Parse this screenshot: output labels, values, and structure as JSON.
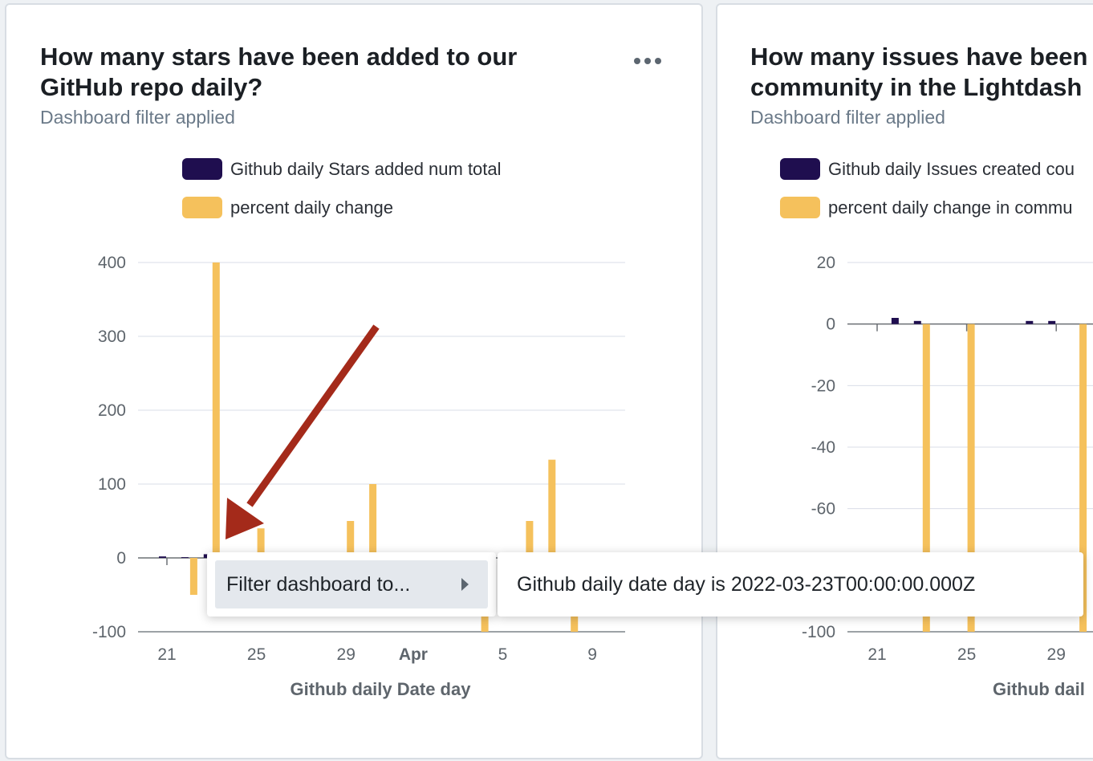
{
  "charts": [
    {
      "title": "How many stars have been added to our\nGitHub repo daily?",
      "subtitle": "Dashboard filter applied",
      "more_icon": "ellipsis-icon",
      "legend": [
        {
          "label": "Github daily Stars added num total",
          "color": "#1f0e4f"
        },
        {
          "label": "percent daily change",
          "color": "#f5c15c"
        }
      ]
    },
    {
      "title": "How many issues have been\ncommunity in the Lightdash",
      "subtitle": "Dashboard filter applied",
      "legend": [
        {
          "label": "Github daily Issues created cou",
          "color": "#1f0e4f"
        },
        {
          "label": "percent daily change in commu",
          "color": "#f5c15c"
        }
      ]
    }
  ],
  "chart_data": [
    {
      "type": "bar",
      "title": "How many stars have been added to our GitHub repo daily?",
      "xlabel": "Github daily Date day",
      "ylabel": "",
      "ylim": [
        -100,
        400
      ],
      "yticks": [
        -100,
        0,
        100,
        200,
        300,
        400
      ],
      "x_ticks": [
        {
          "label": "21",
          "date": "2022-03-21",
          "bold": false
        },
        {
          "label": "25",
          "date": "2022-03-25",
          "bold": false
        },
        {
          "label": "29",
          "date": "2022-03-29",
          "bold": false
        },
        {
          "label": "Apr",
          "date": "2022-04-01",
          "bold": true
        },
        {
          "label": "5",
          "date": "2022-04-05",
          "bold": false
        },
        {
          "label": "9",
          "date": "2022-04-09",
          "bold": false
        }
      ],
      "grid": true,
      "legend_position": "top-left",
      "series": [
        {
          "name": "Github daily Stars added num total",
          "color": "#1f0e4f",
          "points": [
            {
              "x": "2022-03-21",
              "y": 2
            },
            {
              "x": "2022-03-22",
              "y": 1
            },
            {
              "x": "2022-03-23",
              "y": 5
            },
            {
              "x": "2022-03-25",
              "y": 7
            },
            {
              "x": "2022-03-30",
              "y": 6
            },
            {
              "x": "2022-04-07",
              "y": 7
            }
          ]
        },
        {
          "name": "percent daily change",
          "color": "#f5c15c",
          "points": [
            {
              "x": "2022-03-22",
              "y": -50
            },
            {
              "x": "2022-03-23",
              "y": 400
            },
            {
              "x": "2022-03-25",
              "y": 40
            },
            {
              "x": "2022-03-29",
              "y": 50
            },
            {
              "x": "2022-03-30",
              "y": 100
            },
            {
              "x": "2022-04-04",
              "y": -100
            },
            {
              "x": "2022-04-06",
              "y": 50
            },
            {
              "x": "2022-04-07",
              "y": 133
            },
            {
              "x": "2022-04-08",
              "y": -100
            }
          ]
        }
      ]
    },
    {
      "type": "bar",
      "title": "How many issues have been community in the Lightdash",
      "xlabel": "Github dail",
      "ylabel": "",
      "ylim": [
        -100,
        20
      ],
      "yticks": [
        -100,
        -60,
        -40,
        -20,
        0,
        20
      ],
      "x_ticks": [
        {
          "label": "21",
          "date": "2022-03-21",
          "bold": false
        },
        {
          "label": "25",
          "date": "2022-03-25",
          "bold": false
        },
        {
          "label": "29",
          "date": "2022-03-29",
          "bold": false
        }
      ],
      "grid": true,
      "legend_position": "top-left",
      "series": [
        {
          "name": "Github daily Issues created cou",
          "color": "#1f0e4f",
          "points": [
            {
              "x": "2022-03-22",
              "y": 2
            },
            {
              "x": "2022-03-23",
              "y": 1
            },
            {
              "x": "2022-03-28",
              "y": 1
            },
            {
              "x": "2022-03-29",
              "y": 1
            }
          ]
        },
        {
          "name": "percent daily change in commu",
          "color": "#f5c15c",
          "points": [
            {
              "x": "2022-03-23",
              "y": -100
            },
            {
              "x": "2022-03-25",
              "y": -100
            },
            {
              "x": "2022-03-30",
              "y": -100
            }
          ]
        }
      ]
    }
  ],
  "context_menu": {
    "item_label": "Filter dashboard to...",
    "submenu_label": "Github daily date day is 2022-03-23T00:00:00.000Z",
    "chevron_icon": "chevron-right-icon"
  },
  "annotation": {
    "icon": "arrow-icon",
    "color": "#a42a1a"
  }
}
